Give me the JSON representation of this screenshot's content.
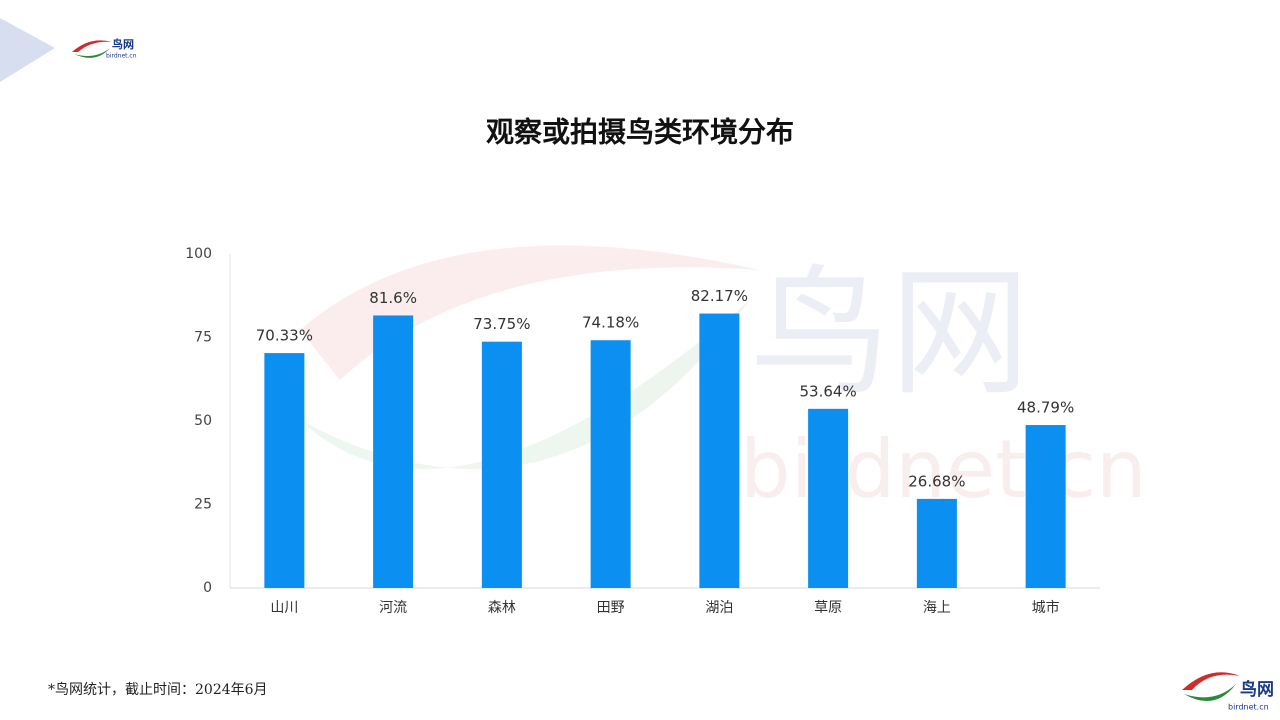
{
  "logo": {
    "name": "鸟网",
    "url": "birdnet.cn"
  },
  "watermark": {
    "name": "鸟网",
    "url": "birdnet.cn"
  },
  "footnote": "*鸟网统计，截止时间：2024年6月",
  "chart_data": {
    "type": "bar",
    "title": "观察或拍摄鸟类环境分布",
    "categories": [
      "山川",
      "河流",
      "森林",
      "田野",
      "湖泊",
      "草原",
      "海上",
      "城市"
    ],
    "values": [
      70.33,
      81.6,
      73.75,
      74.18,
      82.17,
      53.64,
      26.68,
      48.79
    ],
    "value_labels": [
      "70.33%",
      "81.6%",
      "73.75%",
      "74.18%",
      "82.17%",
      "53.64%",
      "26.68%",
      "48.79%"
    ],
    "color": "#0b8ff0",
    "ylim": [
      0,
      100
    ],
    "yticks": [
      0,
      25,
      50,
      75,
      100
    ],
    "grid": false
  }
}
